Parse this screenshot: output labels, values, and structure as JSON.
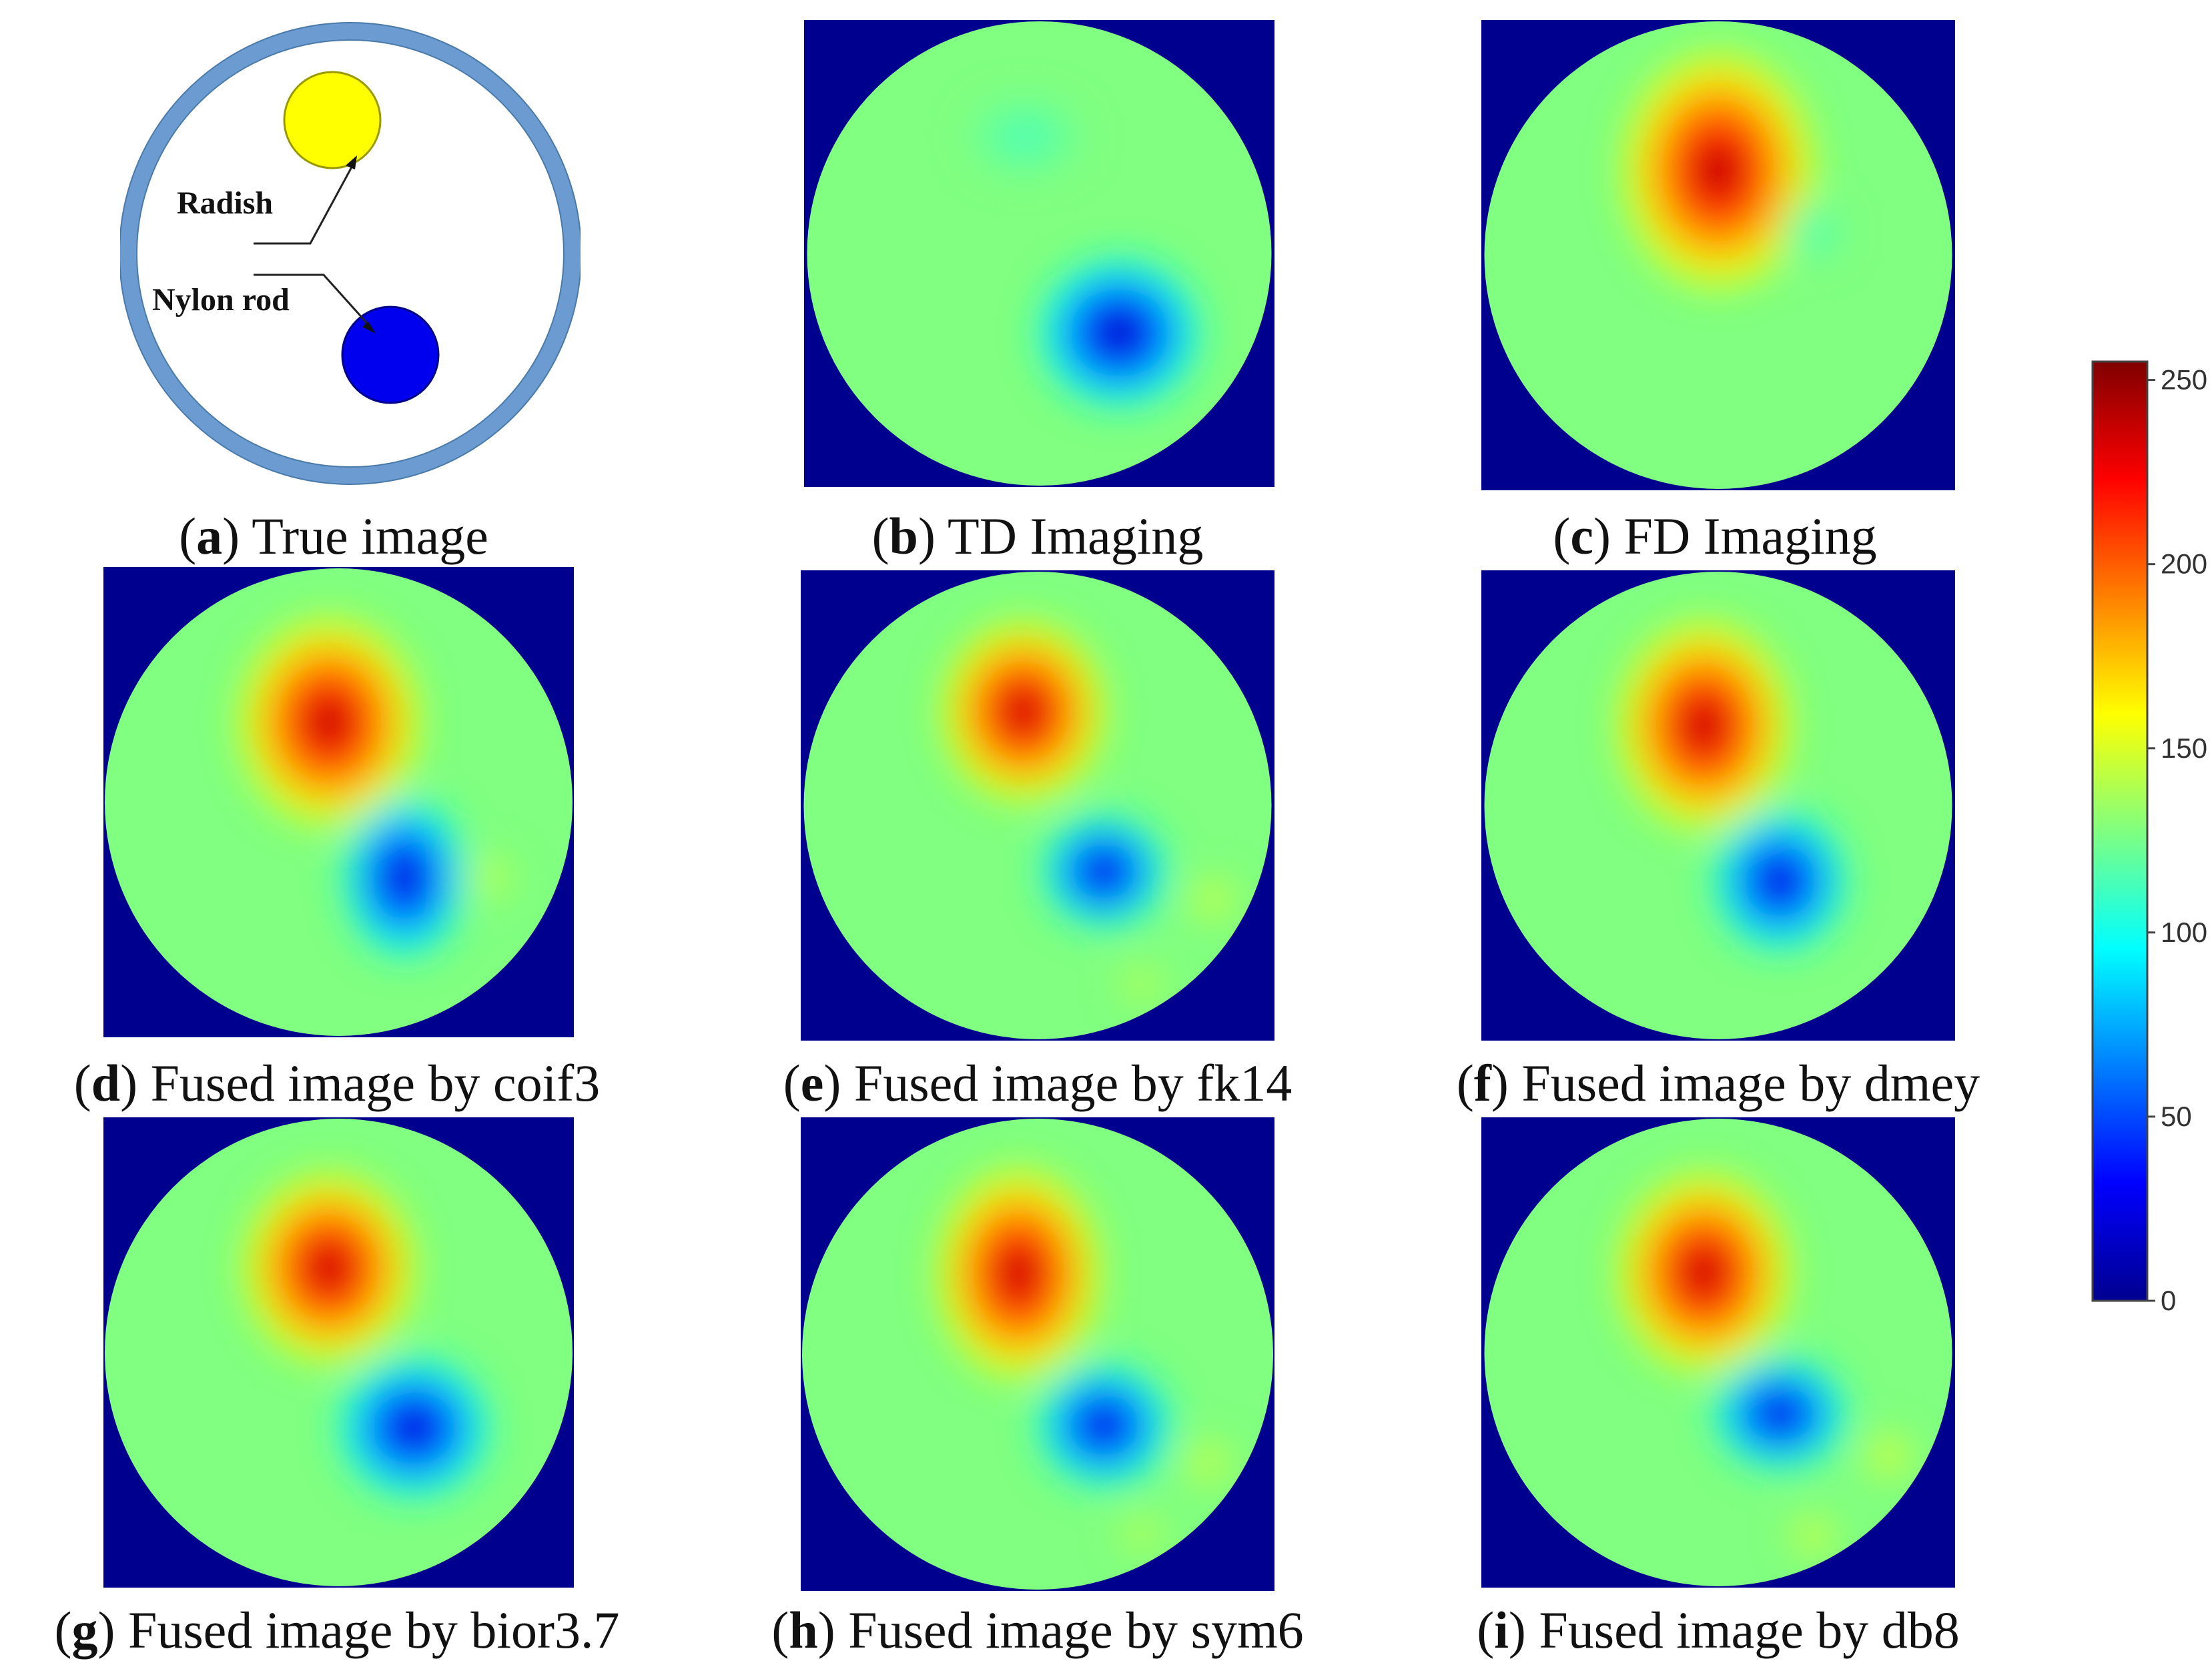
{
  "panels": [
    {
      "letter": "a",
      "title": " True image"
    },
    {
      "letter": "b",
      "title": " TD Imaging"
    },
    {
      "letter": "c",
      "title": " FD Imaging"
    },
    {
      "letter": "d",
      "title": " Fused image by coif3"
    },
    {
      "letter": "e",
      "title": " Fused image by fk14"
    },
    {
      "letter": "f",
      "title": " Fused image by dmey"
    },
    {
      "letter": "g",
      "title": " Fused image by bior3.7"
    },
    {
      "letter": "h",
      "title": " Fused image by sym6"
    },
    {
      "letter": "i",
      "title": " Fused image by db8"
    }
  ],
  "true_image": {
    "radish_label": "Radish",
    "nylon_label": "Nylon rod",
    "pipe_color": "#6699cc",
    "radish_color": "#ffff00",
    "nylon_color": "#0000ee"
  },
  "colorbar": {
    "ticks": [
      "250",
      "200",
      "150",
      "100",
      "50",
      "0"
    ],
    "min": 0,
    "max": 255
  }
}
